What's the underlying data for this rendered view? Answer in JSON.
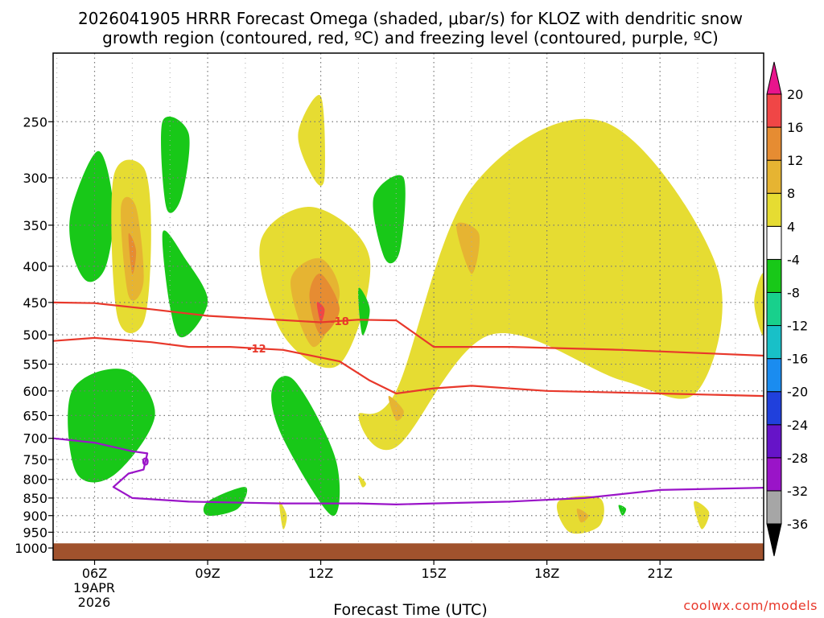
{
  "chart_data": {
    "type": "heatmap",
    "title": [
      "2026041905 HRRR Forecast Omega (shaded, μbar/s) for KLOZ with dendritic snow",
      "growth region (contoured, red, ºC) and freezing level (contoured, purple, ºC)"
    ],
    "xlabel": "Forecast Time (UTC)",
    "ylabel": "",
    "x_unit": "hours UTC (from 19 Apr 2026 00Z)",
    "xlim": [
      4.9,
      23.75
    ],
    "x_ticks": [
      {
        "value": 6,
        "label": "06Z"
      },
      {
        "value": 9,
        "label": "09Z"
      },
      {
        "value": 12,
        "label": "12Z"
      },
      {
        "value": 15,
        "label": "15Z"
      },
      {
        "value": 18,
        "label": "18Z"
      },
      {
        "value": 21,
        "label": "21Z"
      }
    ],
    "date_label": [
      "19APR",
      "2026"
    ],
    "y_unit": "hPa",
    "ylim": [
      1040,
      200
    ],
    "y_scale": "log",
    "y_ticks": [
      250,
      300,
      350,
      400,
      450,
      500,
      550,
      600,
      650,
      700,
      750,
      800,
      850,
      900,
      950,
      1000
    ],
    "grid": true,
    "surface_pressure": 985,
    "colorbar": {
      "levels": [
        -36,
        -32,
        -28,
        -24,
        -20,
        -16,
        -12,
        -8,
        -4,
        4,
        8,
        12,
        16,
        20
      ],
      "colors": [
        "#a6a6a6",
        "#9a14c8",
        "#6614c8",
        "#2040dc",
        "#1a8cf0",
        "#18c0c8",
        "#18d08c",
        "#18c818",
        "#ffffff",
        "#e6dc32",
        "#e6b432",
        "#e68c32",
        "#f04646"
      ],
      "under_color": "#000000",
      "over_color": "#e8148c"
    },
    "omega_regions": [
      {
        "level": "-12 to -8",
        "color": "#18d08c",
        "x": [
          5.5,
          6.2,
          6.4,
          6.0,
          5.6
        ],
        "p": [
          360,
          305,
          370,
          390,
          350
        ]
      },
      {
        "level": "-8 to -4",
        "color": "#18c818",
        "x": [
          5.4,
          6.1,
          6.5,
          6.3,
          5.8,
          5.4
        ],
        "p": [
          330,
          275,
          330,
          400,
          420,
          380
        ]
      },
      {
        "level": "4 to 8",
        "color": "#e6dc32",
        "x": [
          6.5,
          7.3,
          7.5,
          7.3,
          6.6
        ],
        "p": [
          300,
          290,
          360,
          480,
          470
        ]
      },
      {
        "level": "8 to 12",
        "color": "#e6b432",
        "x": [
          6.7,
          7.1,
          7.3,
          6.9
        ],
        "p": [
          330,
          330,
          420,
          440
        ]
      },
      {
        "level": "12 to 16",
        "color": "#e68c32",
        "x": [
          6.9,
          7.1,
          7.0
        ],
        "p": [
          360,
          380,
          410
        ]
      },
      {
        "level": "-8 to -4",
        "color": "#18c818",
        "x": [
          7.8,
          8.5,
          8.3,
          7.9
        ],
        "p": [
          250,
          260,
          320,
          330
        ]
      },
      {
        "level": "-8 to -4",
        "color": "#18c818",
        "x": [
          7.8,
          8.4,
          9.0,
          8.2
        ],
        "p": [
          360,
          390,
          450,
          500
        ]
      },
      {
        "level": "4 to 8",
        "color": "#e6dc32",
        "x": [
          10.4,
          11.8,
          13.3,
          12.5,
          11.0
        ],
        "p": [
          370,
          330,
          390,
          550,
          500
        ]
      },
      {
        "level": "8 to 12",
        "color": "#e6b432",
        "x": [
          11.2,
          12.0,
          12.5,
          11.8
        ],
        "p": [
          420,
          390,
          440,
          520
        ]
      },
      {
        "level": "12 to 16",
        "color": "#e68c32",
        "x": [
          11.7,
          12.0,
          12.5,
          12.0
        ],
        "p": [
          440,
          410,
          460,
          500
        ]
      },
      {
        "level": "16 to 20",
        "color": "#f04646",
        "x": [
          11.9,
          12.1,
          12.0
        ],
        "p": [
          450,
          460,
          480
        ]
      },
      {
        "level": "4 to 8",
        "color": "#e6dc32",
        "x": [
          11.4,
          12.0,
          12.1,
          11.8
        ],
        "p": [
          260,
          230,
          300,
          300
        ]
      },
      {
        "level": "-8 to -4",
        "color": "#18c818",
        "x": [
          13.4,
          14.2,
          14.1,
          13.7
        ],
        "p": [
          320,
          300,
          380,
          390
        ]
      },
      {
        "level": "-8 to -4",
        "color": "#18c818",
        "x": [
          13.0,
          13.3,
          13.1
        ],
        "p": [
          430,
          460,
          500
        ]
      },
      {
        "level": "4 to 8",
        "color": "#e6dc32",
        "x": [
          14.0,
          16.0,
          19.5,
          22.5,
          22.0,
          20.0,
          16.5,
          14.0,
          13.0
        ],
        "p": [
          600,
          310,
          250,
          400,
          600,
          580,
          500,
          720,
          650
        ]
      },
      {
        "level": "8 to 12",
        "color": "#e6b432",
        "x": [
          15.6,
          16.2,
          16.0
        ],
        "p": [
          350,
          360,
          410
        ]
      },
      {
        "level": "8 to 12",
        "color": "#e6b432",
        "x": [
          13.8,
          14.2,
          14.0
        ],
        "p": [
          610,
          640,
          660
        ]
      },
      {
        "level": "-12 to -8",
        "color": "#18d08c",
        "x": [
          5.6,
          6.5,
          7.0,
          6.3,
          5.7
        ],
        "p": [
          620,
          600,
          680,
          720,
          700
        ]
      },
      {
        "level": "-8 to -4",
        "color": "#18c818",
        "x": [
          5.4,
          6.8,
          7.6,
          6.5,
          5.5
        ],
        "p": [
          600,
          560,
          650,
          790,
          780
        ]
      },
      {
        "level": "-8 to -4",
        "color": "#18c818",
        "x": [
          10.7,
          11.3,
          12.4,
          12.3,
          11.0
        ],
        "p": [
          600,
          580,
          750,
          900,
          700
        ]
      },
      {
        "level": "-8 to -4",
        "color": "#18c818",
        "x": [
          9.0,
          10.0,
          9.8,
          9.0
        ],
        "p": [
          860,
          820,
          880,
          900
        ]
      },
      {
        "level": "4 to 8",
        "color": "#e6dc32",
        "x": [
          10.9,
          11.1,
          11.0
        ],
        "p": [
          860,
          900,
          940
        ]
      },
      {
        "level": "4 to 8",
        "color": "#e6dc32",
        "x": [
          13.0,
          13.2,
          13.1
        ],
        "p": [
          790,
          810,
          820
        ]
      },
      {
        "level": "4 to 8",
        "color": "#e6dc32",
        "x": [
          18.3,
          19.4,
          19.4,
          18.6
        ],
        "p": [
          860,
          850,
          930,
          950
        ]
      },
      {
        "level": "8 to 12",
        "color": "#e6b432",
        "x": [
          18.8,
          19.1,
          18.9
        ],
        "p": [
          880,
          900,
          920
        ]
      },
      {
        "level": "-8 to -4",
        "color": "#18c818",
        "x": [
          19.9,
          20.1,
          20.0
        ],
        "p": [
          870,
          880,
          900
        ]
      },
      {
        "level": "4 to 8",
        "color": "#e6dc32",
        "x": [
          21.9,
          22.3,
          22.1
        ],
        "p": [
          860,
          890,
          940
        ]
      },
      {
        "level": "4 to 8",
        "color": "#e6dc32",
        "x": [
          23.5,
          23.75,
          23.75
        ],
        "p": [
          450,
          410,
          500
        ]
      }
    ],
    "contours": [
      {
        "name": "dendritic -18",
        "color": "#e8382b",
        "label": "-18",
        "label_index": 5,
        "x": [
          4.9,
          6.0,
          7.5,
          9.0,
          10.5,
          12.0,
          13.0,
          14.0,
          15.0,
          17.0,
          20.0,
          23.75
        ],
        "p": [
          450,
          451,
          460,
          470,
          475,
          480,
          476,
          477,
          520,
          520,
          525,
          535
        ]
      },
      {
        "name": "dendritic -12",
        "color": "#e8382b",
        "label": "-12",
        "label_index": 4,
        "x": [
          4.9,
          6.0,
          7.5,
          8.5,
          9.6,
          11.0,
          12.5,
          13.3,
          14.0,
          15.0,
          16.0,
          18.0,
          21.0,
          23.75
        ],
        "p": [
          510,
          505,
          512,
          520,
          520,
          525,
          545,
          580,
          605,
          595,
          590,
          600,
          605,
          610
        ]
      },
      {
        "name": "freezing level 0",
        "color": "#9a14c8",
        "label": "0",
        "label_index": 3,
        "x": [
          4.9,
          6.0,
          7.0,
          7.4,
          7.3,
          6.9,
          6.5,
          7.0,
          8.5,
          9.5,
          11.0,
          13.0,
          14.0,
          15.0,
          17.0,
          19.0,
          21.0,
          23.75
        ],
        "p": [
          700,
          710,
          730,
          735,
          775,
          785,
          820,
          850,
          860,
          862,
          865,
          865,
          868,
          865,
          860,
          850,
          828,
          822
        ]
      }
    ]
  },
  "credit": "coolwx.com/models"
}
